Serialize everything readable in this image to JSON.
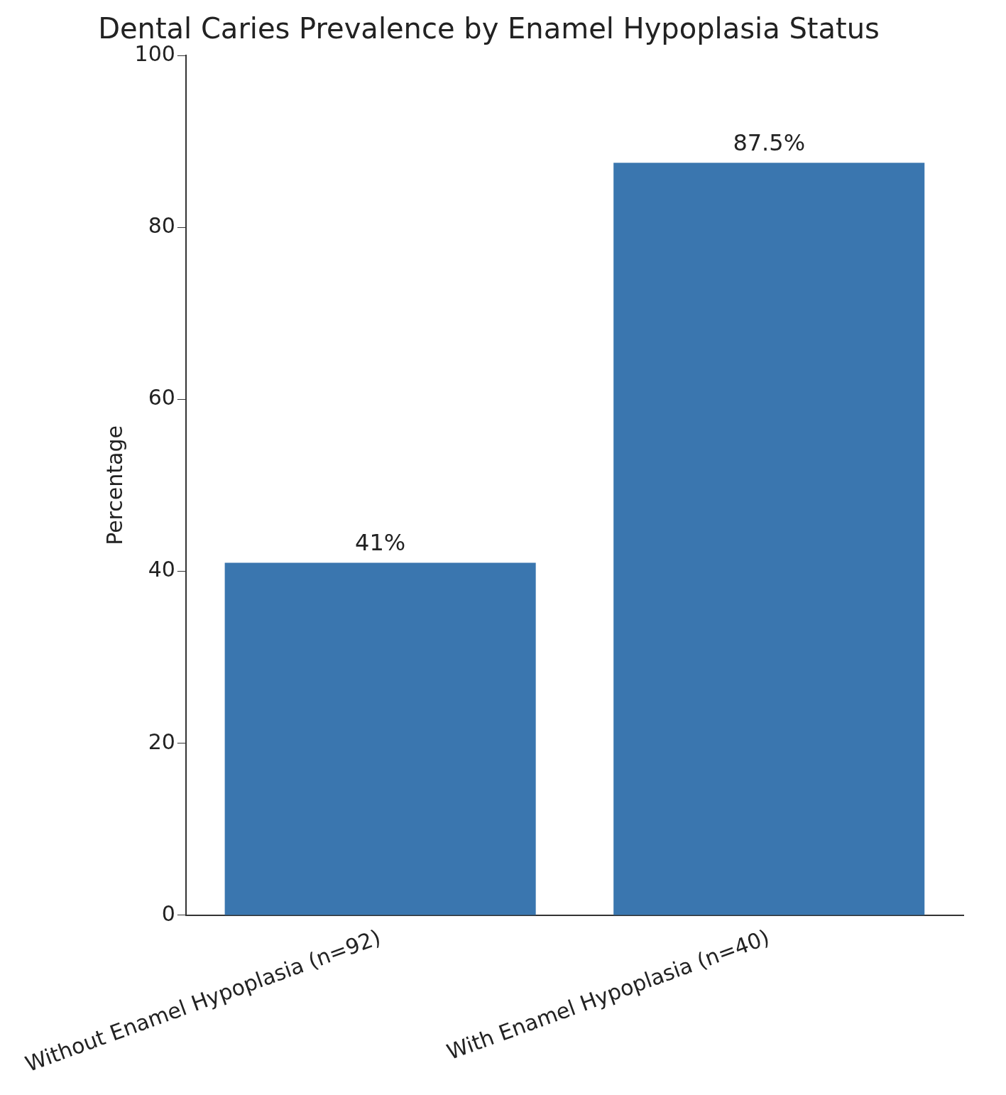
{
  "chart_data": {
    "type": "bar",
    "title": "Dental Caries Prevalence by Enamel Hypoplasia Status",
    "ylabel": "Percentage",
    "categories": [
      "Without Enamel Hypoplasia (n=92)",
      "With Enamel Hypoplasia (n=40)"
    ],
    "values": [
      41,
      87.5
    ],
    "color": "#3a76af",
    "value_labels": [
      "41%",
      "87.5%"
    ],
    "ylim": [
      0,
      100
    ],
    "yticks": [
      0,
      20,
      40,
      60,
      80,
      100
    ],
    "grid": false,
    "legend": false
  }
}
